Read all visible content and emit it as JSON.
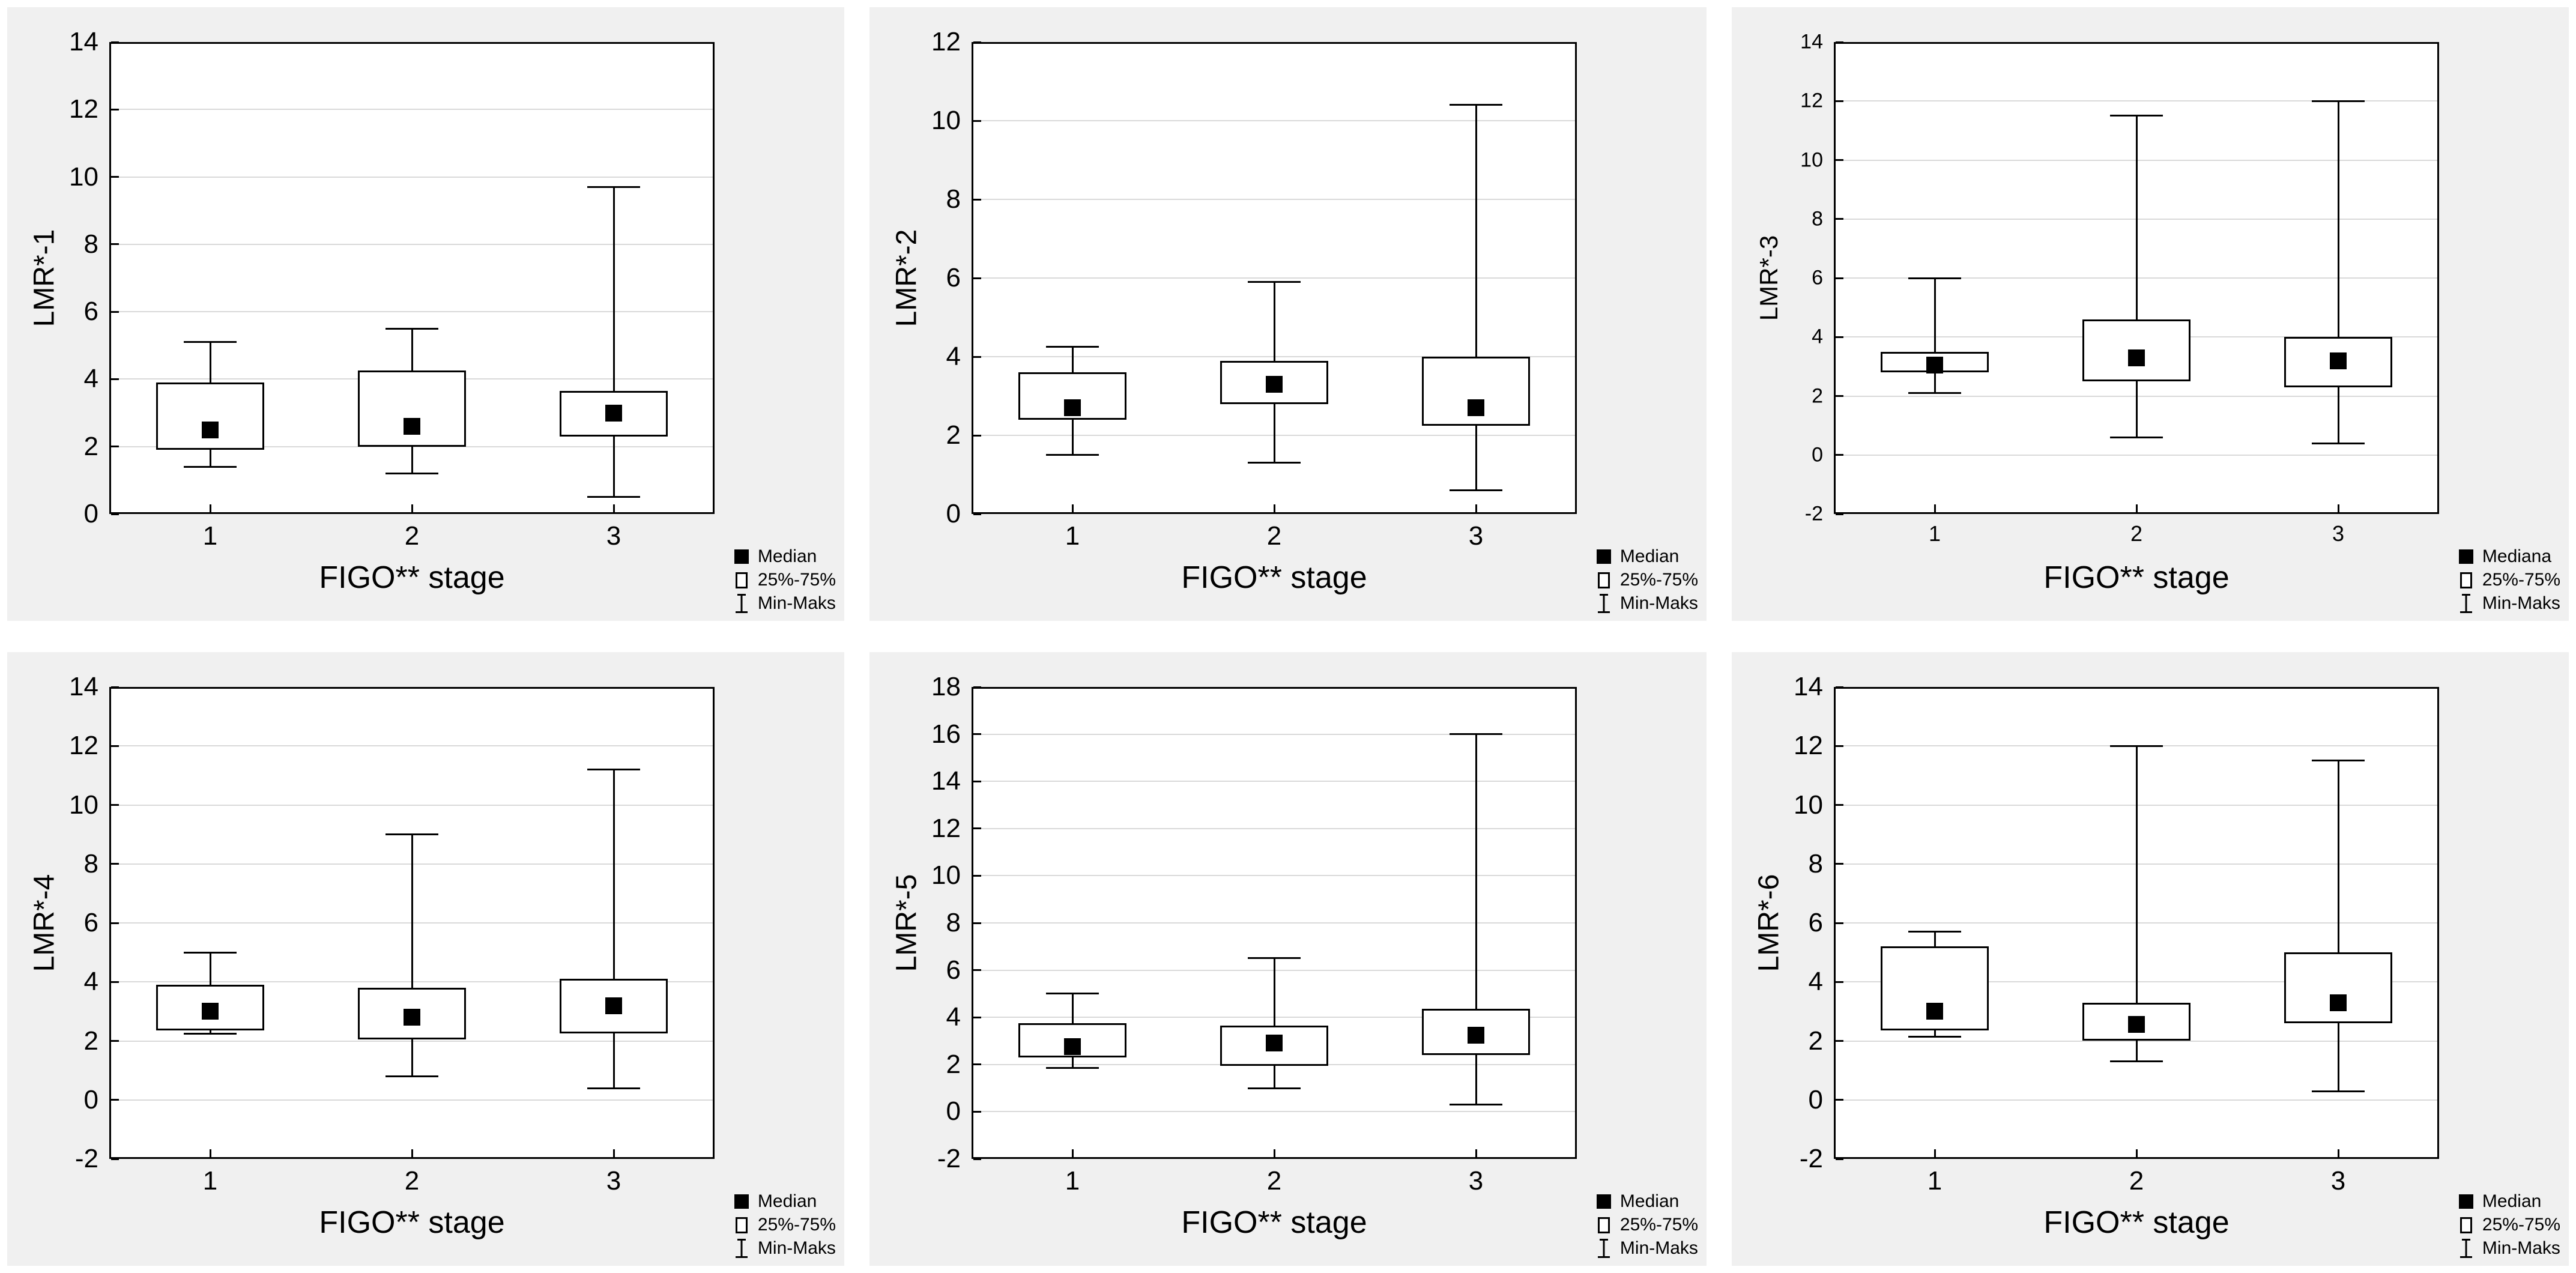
{
  "colors": {
    "panel_background": "#f0f0f0",
    "plot_background": "#ffffff",
    "line": "#000000",
    "gridline": "#d9d9d9"
  },
  "chart_data": [
    {
      "type": "box",
      "ylabel": "LMR*-1",
      "xlabel": "FIGO** stage",
      "categories": [
        "1",
        "2",
        "3"
      ],
      "ylim": [
        0,
        14
      ],
      "ytick_step": 2,
      "grid": "horizontal",
      "legend_position": "bottom-right",
      "legend": [
        "Median",
        "25%-75%",
        "Min-Maks"
      ],
      "series": [
        {
          "category": "1",
          "min": 1.4,
          "q1": 1.9,
          "median": 2.5,
          "q3": 3.9,
          "max": 5.1
        },
        {
          "category": "2",
          "min": 1.2,
          "q1": 2.0,
          "median": 2.6,
          "q3": 4.25,
          "max": 5.5
        },
        {
          "category": "3",
          "min": 0.5,
          "q1": 2.3,
          "median": 3.0,
          "q3": 3.65,
          "max": 9.7
        }
      ]
    },
    {
      "type": "box",
      "ylabel": "LMR*-2",
      "xlabel": "FIGO** stage",
      "categories": [
        "1",
        "2",
        "3"
      ],
      "ylim": [
        0,
        12
      ],
      "ytick_step": 2,
      "grid": "horizontal",
      "legend_position": "bottom-right",
      "legend": [
        "Median",
        "25%-75%",
        "Min-Maks"
      ],
      "series": [
        {
          "category": "1",
          "min": 1.5,
          "q1": 2.4,
          "median": 2.7,
          "q3": 3.6,
          "max": 4.25
        },
        {
          "category": "2",
          "min": 1.3,
          "q1": 2.8,
          "median": 3.3,
          "q3": 3.9,
          "max": 5.9
        },
        {
          "category": "3",
          "min": 0.6,
          "q1": 2.25,
          "median": 2.7,
          "q3": 4.0,
          "max": 10.4
        }
      ]
    },
    {
      "type": "box",
      "ylabel": "LMR*-3",
      "xlabel": "FIGO** stage",
      "categories": [
        "1",
        "2",
        "3"
      ],
      "ylim": [
        -2,
        14
      ],
      "ytick_step": 2,
      "grid": "horizontal",
      "legend_position": "bottom-right",
      "legend": [
        "Mediana",
        "25%-75%",
        "Min-Maks"
      ],
      "series": [
        {
          "category": "1",
          "min": 2.1,
          "q1": 2.8,
          "median": 3.05,
          "q3": 3.5,
          "max": 6.0
        },
        {
          "category": "2",
          "min": 0.6,
          "q1": 2.5,
          "median": 3.3,
          "q3": 4.6,
          "max": 11.5
        },
        {
          "category": "3",
          "min": 0.4,
          "q1": 2.3,
          "median": 3.2,
          "q3": 4.0,
          "max": 12.0
        }
      ]
    },
    {
      "type": "box",
      "ylabel": "LMR*-4",
      "xlabel": "FIGO** stage",
      "categories": [
        "1",
        "2",
        "3"
      ],
      "ylim": [
        -2,
        14
      ],
      "ytick_step": 2,
      "grid": "horizontal",
      "legend_position": "bottom-right",
      "legend": [
        "Median",
        "25%-75%",
        "Min-Maks"
      ],
      "series": [
        {
          "category": "1",
          "min": 2.25,
          "q1": 2.35,
          "median": 3.0,
          "q3": 3.9,
          "max": 5.0
        },
        {
          "category": "2",
          "min": 0.8,
          "q1": 2.05,
          "median": 2.8,
          "q3": 3.8,
          "max": 9.0
        },
        {
          "category": "3",
          "min": 0.4,
          "q1": 2.25,
          "median": 3.2,
          "q3": 4.1,
          "max": 11.2
        }
      ]
    },
    {
      "type": "box",
      "ylabel": "LMR*-5",
      "xlabel": "FIGO** stage",
      "categories": [
        "1",
        "2",
        "3"
      ],
      "ylim": [
        -2,
        18
      ],
      "ytick_step": 2,
      "grid": "horizontal",
      "legend_position": "bottom-right",
      "legend": [
        "Median",
        "25%-75%",
        "Min-Maks"
      ],
      "series": [
        {
          "category": "1",
          "min": 1.85,
          "q1": 2.3,
          "median": 2.75,
          "q3": 3.75,
          "max": 5.0
        },
        {
          "category": "2",
          "min": 1.0,
          "q1": 1.95,
          "median": 2.9,
          "q3": 3.65,
          "max": 6.5
        },
        {
          "category": "3",
          "min": 0.3,
          "q1": 2.4,
          "median": 3.25,
          "q3": 4.35,
          "max": 16.0
        }
      ]
    },
    {
      "type": "box",
      "ylabel": "LMR*-6",
      "xlabel": "FIGO** stage",
      "categories": [
        "1",
        "2",
        "3"
      ],
      "ylim": [
        -2,
        14
      ],
      "ytick_step": 2,
      "grid": "horizontal",
      "legend_position": "bottom-right",
      "legend": [
        "Median",
        "25%-75%",
        "Min-Maks"
      ],
      "series": [
        {
          "category": "1",
          "min": 2.15,
          "q1": 2.35,
          "median": 3.0,
          "q3": 5.2,
          "max": 5.7
        },
        {
          "category": "2",
          "min": 1.3,
          "q1": 2.0,
          "median": 2.55,
          "q3": 3.3,
          "max": 12.0
        },
        {
          "category": "3",
          "min": 0.3,
          "q1": 2.6,
          "median": 3.3,
          "q3": 5.0,
          "max": 11.5
        }
      ]
    }
  ]
}
